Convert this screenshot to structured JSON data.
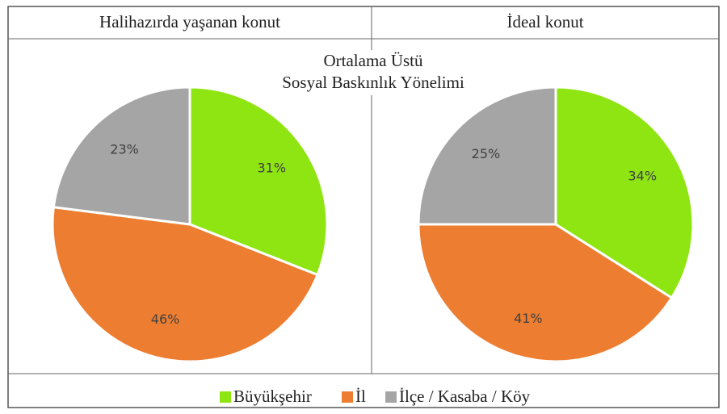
{
  "figure_title": [
    "Ortalama Üstü",
    "Sosyal Baskınlık Yönelimi"
  ],
  "chart_data": [
    {
      "type": "pie",
      "title": "Halihazırda yaşanan konut",
      "categories": [
        "Büyükşehir",
        "İl",
        "İlçe / Kasaba / Köy"
      ],
      "values": [
        31,
        46,
        23
      ],
      "value_labels": [
        "31%",
        "46%",
        "23%"
      ],
      "colors": [
        "#8fe512",
        "#ed7d31",
        "#a5a5a5"
      ]
    },
    {
      "type": "pie",
      "title": "İdeal konut",
      "categories": [
        "Büyükşehir",
        "İl",
        "İlçe / Kasaba / Köy"
      ],
      "values": [
        34,
        41,
        25
      ],
      "value_labels": [
        "34%",
        "41%",
        "25%"
      ],
      "colors": [
        "#8fe512",
        "#ed7d31",
        "#a5a5a5"
      ]
    }
  ]
}
